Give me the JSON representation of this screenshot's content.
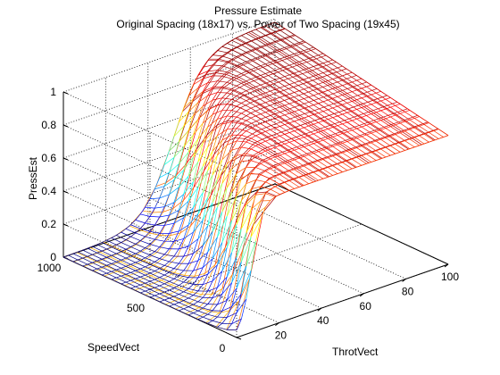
{
  "chart_data": {
    "type": "surface-mesh",
    "title": "Pressure Estimate",
    "subtitle": "Original Spacing (18x17) vs. Power of Two Spacing (19x45)",
    "xlabel": "ThrotVect",
    "ylabel": "SpeedVect",
    "zlabel": "PressEst",
    "xlim": [
      0,
      100
    ],
    "ylim": [
      0,
      1000
    ],
    "zlim": [
      0,
      1
    ],
    "x_ticks": [
      "20",
      "40",
      "60",
      "80",
      "100"
    ],
    "y_ticks": [
      "0",
      "500",
      "1000"
    ],
    "z_ticks": [
      "0",
      "0.2",
      "0.4",
      "0.6",
      "0.8",
      "1"
    ],
    "grid": true,
    "colormap": "jet",
    "series": [
      {
        "grid_size": [
          18,
          17
        ],
        "color_scheme": "red"
      },
      {
        "grid_size": [
          19,
          45
        ],
        "color_scheme": "jet"
      }
    ]
  }
}
